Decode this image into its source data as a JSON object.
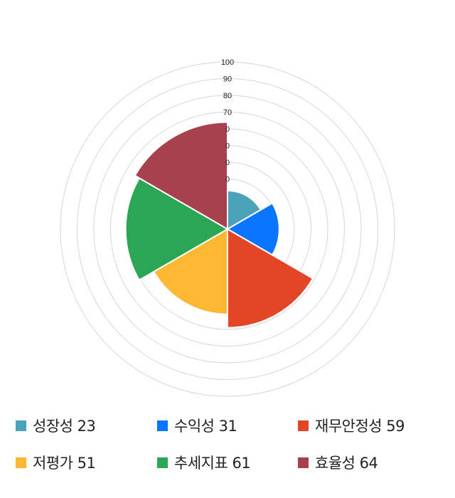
{
  "chart_data": {
    "type": "polar-area",
    "rlim": [
      0,
      100
    ],
    "ticks": [
      "0",
      "0",
      "0",
      "0",
      "70",
      "80",
      "90",
      "100"
    ],
    "grid": true,
    "legend_position": "bottom",
    "slices": [
      {
        "name": "성장성",
        "value": 23,
        "color": "#4aa3b8",
        "label": "성장성 23"
      },
      {
        "name": "수익성",
        "value": 31,
        "color": "#0a75ff",
        "label": "수익성 31"
      },
      {
        "name": "재무안정성",
        "value": 59,
        "color": "#e34626",
        "label": "재무안정성 59"
      },
      {
        "name": "저평가",
        "value": 51,
        "color": "#fdb833",
        "label": "저평가 51"
      },
      {
        "name": "추세지표",
        "value": 61,
        "color": "#2ba654",
        "label": "추세지표 61"
      },
      {
        "name": "효율성",
        "value": 64,
        "color": "#a8404e",
        "label": "효율성 64"
      }
    ]
  }
}
